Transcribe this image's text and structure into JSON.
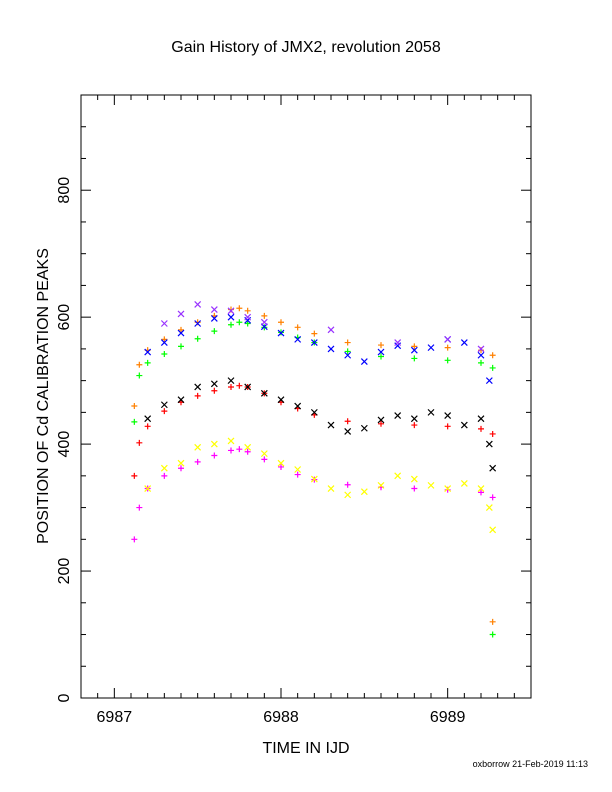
{
  "chart_data": {
    "type": "scatter",
    "title": "Gain History of JMX2, revolution 2058",
    "xlabel": "TIME IN IJD",
    "ylabel": "POSITION OF Cd CALIBRATION PEAKS",
    "xlim": [
      6986.8,
      6989.5
    ],
    "ylim": [
      0,
      950
    ],
    "x_ticks": [
      6987,
      6988,
      6989
    ],
    "y_ticks": [
      0,
      200,
      400,
      600,
      800
    ],
    "x_tick_labels": [
      "6987",
      "6988",
      "6989"
    ],
    "y_tick_labels": [
      "0",
      "200",
      "400",
      "600",
      "800"
    ],
    "grid": false,
    "series": [
      {
        "color": "#ff8000",
        "marker": "+",
        "x": [
          6987.12,
          6987.15,
          6987.2,
          6987.3,
          6987.4,
          6987.5,
          6987.6,
          6987.7,
          6987.75,
          6987.8,
          6987.9,
          6988.0,
          6988.1,
          6988.2,
          6988.4,
          6988.6,
          6988.8,
          6989.0,
          6989.2,
          6989.27,
          6989.27
        ],
        "y": [
          460,
          525,
          548,
          565,
          580,
          592,
          602,
          612,
          614,
          610,
          602,
          592,
          584,
          574,
          560,
          556,
          554,
          552,
          548,
          540,
          120
        ]
      },
      {
        "color": "#00ff00",
        "marker": "+",
        "x": [
          6987.12,
          6987.15,
          6987.2,
          6987.3,
          6987.4,
          6987.5,
          6987.6,
          6987.7,
          6987.75,
          6987.8,
          6987.9,
          6988.0,
          6988.1,
          6988.2,
          6988.4,
          6988.6,
          6988.8,
          6989.0,
          6989.2,
          6989.27,
          6989.27
        ],
        "y": [
          435,
          508,
          528,
          542,
          554,
          566,
          578,
          588,
          592,
          590,
          584,
          576,
          568,
          560,
          546,
          538,
          535,
          532,
          528,
          520,
          100
        ]
      },
      {
        "color": "#0000ff",
        "marker": "x",
        "x": [
          6987.2,
          6987.3,
          6987.4,
          6987.5,
          6987.6,
          6987.7,
          6987.8,
          6987.9,
          6988.0,
          6988.1,
          6988.2,
          6988.3,
          6988.4,
          6988.5,
          6988.6,
          6988.7,
          6988.8,
          6988.9,
          6989.0,
          6989.1,
          6989.2,
          6989.25
        ],
        "y": [
          545,
          560,
          575,
          590,
          598,
          600,
          595,
          585,
          575,
          565,
          560,
          550,
          540,
          530,
          545,
          555,
          548,
          552,
          565,
          560,
          540,
          500
        ]
      },
      {
        "color": "#9933ff",
        "marker": "x",
        "x": [
          6987.3,
          6987.4,
          6987.5,
          6987.6,
          6987.7,
          6987.8,
          6987.9,
          6988.3,
          6988.7,
          6989.0,
          6989.2
        ],
        "y": [
          590,
          605,
          620,
          612,
          610,
          600,
          592,
          580,
          560,
          565,
          550
        ]
      },
      {
        "color": "#ff0000",
        "marker": "+",
        "x": [
          6987.12,
          6987.15,
          6987.2,
          6987.3,
          6987.4,
          6987.5,
          6987.6,
          6987.7,
          6987.75,
          6987.8,
          6987.9,
          6988.0,
          6988.1,
          6988.2,
          6988.4,
          6988.6,
          6988.8,
          6989.0,
          6989.2,
          6989.27
        ],
        "y": [
          350,
          402,
          428,
          452,
          466,
          476,
          484,
          490,
          492,
          490,
          480,
          466,
          456,
          446,
          436,
          432,
          430,
          428,
          424,
          416
        ]
      },
      {
        "color": "#000000",
        "marker": "x",
        "x": [
          6987.2,
          6987.3,
          6987.4,
          6987.5,
          6987.6,
          6987.7,
          6987.8,
          6987.9,
          6988.0,
          6988.1,
          6988.2,
          6988.3,
          6988.4,
          6988.5,
          6988.6,
          6988.7,
          6988.8,
          6988.9,
          6989.0,
          6989.1,
          6989.2,
          6989.25,
          6989.27
        ],
        "y": [
          440,
          462,
          470,
          490,
          495,
          500,
          490,
          480,
          470,
          460,
          450,
          430,
          420,
          425,
          438,
          445,
          440,
          450,
          445,
          430,
          440,
          400,
          362
        ]
      },
      {
        "color": "#ff00ff",
        "marker": "+",
        "x": [
          6987.12,
          6987.15,
          6987.2,
          6987.3,
          6987.4,
          6987.5,
          6987.6,
          6987.7,
          6987.75,
          6987.8,
          6987.9,
          6988.0,
          6988.1,
          6988.2,
          6988.4,
          6988.6,
          6988.8,
          6989.0,
          6989.2,
          6989.27
        ],
        "y": [
          250,
          300,
          330,
          350,
          362,
          372,
          382,
          390,
          392,
          388,
          376,
          364,
          352,
          344,
          336,
          332,
          330,
          328,
          324,
          316
        ]
      },
      {
        "color": "#ffff00",
        "marker": "x",
        "x": [
          6987.2,
          6987.3,
          6987.4,
          6987.5,
          6987.6,
          6987.7,
          6987.8,
          6987.9,
          6988.0,
          6988.1,
          6988.2,
          6988.3,
          6988.4,
          6988.5,
          6988.6,
          6988.7,
          6988.8,
          6988.9,
          6989.0,
          6989.1,
          6989.2,
          6989.25,
          6989.27
        ],
        "y": [
          330,
          362,
          370,
          395,
          400,
          405,
          395,
          385,
          370,
          360,
          345,
          330,
          320,
          325,
          335,
          350,
          345,
          335,
          330,
          338,
          330,
          300,
          265
        ]
      }
    ]
  },
  "footer": {
    "text": "oxborrow 21-Feb-2019 11:13"
  }
}
